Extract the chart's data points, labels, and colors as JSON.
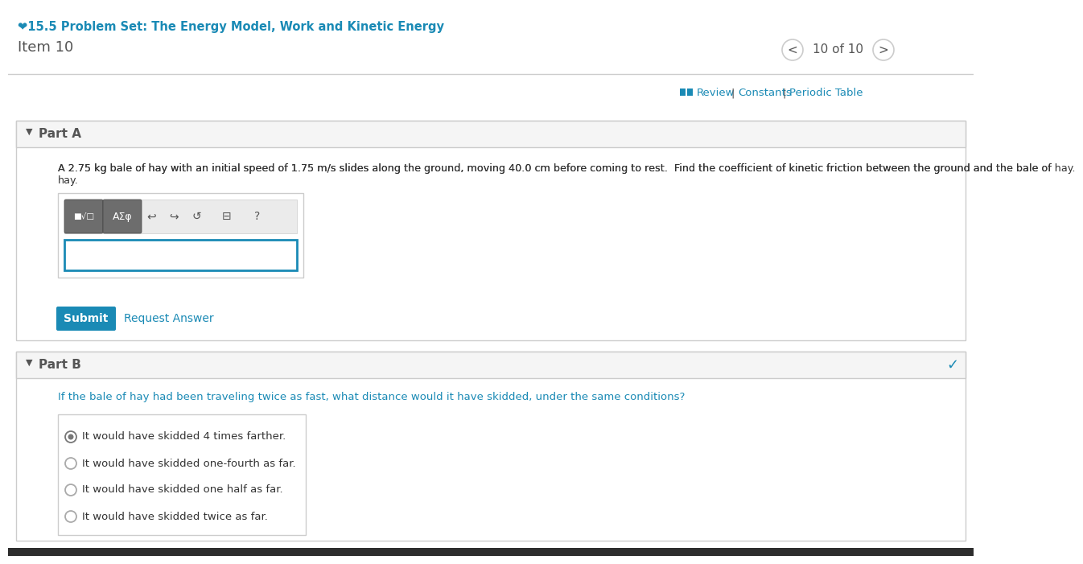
{
  "bg_color": "#ffffff",
  "header_link_color": "#1a8ab5",
  "header_link_text": "❤15.5 Problem Set: The Energy Model, Work and Kinetic Energy",
  "item_label": "Item 10",
  "nav_text": "10 of 10",
  "review_bar_color": "#1a8ab5",
  "review_text": "Review",
  "constants_text": "Constants",
  "periodic_table_text": "Periodic Table",
  "separator_color": "#cccccc",
  "part_a_label": "Part A",
  "part_a_bg": "#f5f5f5",
  "part_a_question": "A 2.75 kg bale of hay with an initial speed of 1.75 m/s slides along the ground, moving 40.0 cm before coming to rest.  Find the coefficient of kinetic friction between the ground and the bale of hay.",
  "input_border_color": "#1a8ab5",
  "submit_bg": "#1a8ab5",
  "submit_text": "Submit",
  "request_answer_text": "Request Answer",
  "request_answer_color": "#1a8ab5",
  "part_b_label": "Part B",
  "part_b_bg": "#f5f5f5",
  "part_b_question": "If the bale of hay had been traveling twice as fast, what distance would it have skidded, under the same conditions?",
  "part_b_question_color": "#1a8ab5",
  "checkmark_color": "#1a8ab5",
  "options": [
    "It would have skidded 4 times farther.",
    "It would have skidded one-fourth as far.",
    "It would have skidded one half as far.",
    "It would have skidded twice as far."
  ],
  "selected_option": 0,
  "option_text_color": "#333333",
  "radio_border_color": "#aaaaaa",
  "radio_fill_color": "#777777",
  "section_border_color": "#cccccc",
  "question_text_color": "#333333",
  "gray_text_color": "#555555",
  "dark_bar_color": "#2d2d2d",
  "toolbar_btn_color": "#6d6d6d",
  "toolbar_icon_color": "#555555",
  "white": "#ffffff"
}
